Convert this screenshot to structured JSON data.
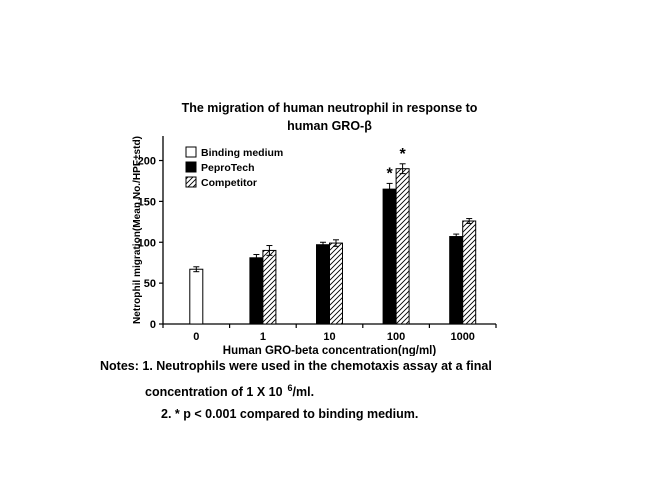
{
  "chart_data": {
    "type": "bar",
    "title": "The migration of human neutrophil in response to human GRO-β",
    "title_lines": [
      "The migration of human neutrophil in response to",
      "human GRO-β"
    ],
    "xlabel": "Human GRO-beta concentration(ng/ml)",
    "ylabel": "Netrophil migration(Mean No./HPF±std)",
    "categories": [
      "0",
      "1",
      "10",
      "100",
      "1000"
    ],
    "series": [
      {
        "name": "Binding medium",
        "fill": "open",
        "values": [
          67,
          null,
          null,
          null,
          null
        ],
        "errors": [
          3,
          null,
          null,
          null,
          null
        ]
      },
      {
        "name": "PeproTech",
        "fill": "solid",
        "values": [
          null,
          81,
          97,
          165,
          107
        ],
        "errors": [
          null,
          4,
          3,
          7,
          3
        ]
      },
      {
        "name": "Competitor",
        "fill": "hatched",
        "values": [
          null,
          90,
          99,
          190,
          126
        ],
        "errors": [
          null,
          6,
          4,
          6,
          3
        ]
      }
    ],
    "yticks": [
      0,
      50,
      100,
      150,
      200
    ],
    "ylim": [
      0,
      230
    ],
    "grid": false,
    "legend_position": "top-left-inside",
    "sig_symbol": "*",
    "sig_categories": [
      "100"
    ],
    "bar_colors": {
      "open": "#ffffff",
      "solid": "#000000",
      "hatched": "diagonal-hatch"
    }
  },
  "notes": {
    "line1": "Notes: 1. Neutrophils were used in the chemotaxis assay at a final",
    "line2_prefix": "concentration of 1 X 10",
    "line2_sup": "6",
    "line2_suffix": "/ml.",
    "line3": "2. * p < 0.001 compared to binding medium."
  }
}
